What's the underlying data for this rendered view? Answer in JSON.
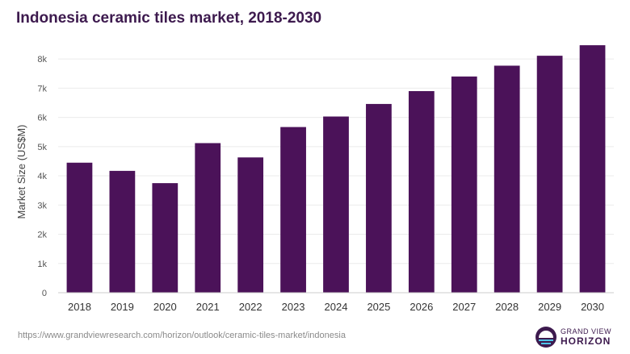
{
  "chart_data": {
    "type": "bar",
    "title": "Indonesia ceramic tiles market, 2018-2030",
    "ylabel": "Market Size (US$M)",
    "xlabel": "",
    "categories": [
      "2018",
      "2019",
      "2020",
      "2021",
      "2022",
      "2023",
      "2024",
      "2025",
      "2026",
      "2027",
      "2028",
      "2029",
      "2030"
    ],
    "values": [
      4450,
      4170,
      3750,
      5120,
      4630,
      5670,
      6030,
      6460,
      6900,
      7400,
      7770,
      8110,
      8470
    ],
    "ylim": [
      0,
      8500
    ],
    "yticks": [
      0,
      1000,
      2000,
      3000,
      4000,
      5000,
      6000,
      7000,
      8000
    ],
    "ytick_labels": [
      "0",
      "1k",
      "2k",
      "3k",
      "4k",
      "5k",
      "6k",
      "7k",
      "8k"
    ],
    "grid": true,
    "bar_color": "#4b1259"
  },
  "footer": {
    "source": "https://www.grandviewresearch.com/horizon/outlook/ceramic-tiles-market/indonesia",
    "logo_top": "GRAND VIEW",
    "logo_bottom": "HORIZON"
  }
}
